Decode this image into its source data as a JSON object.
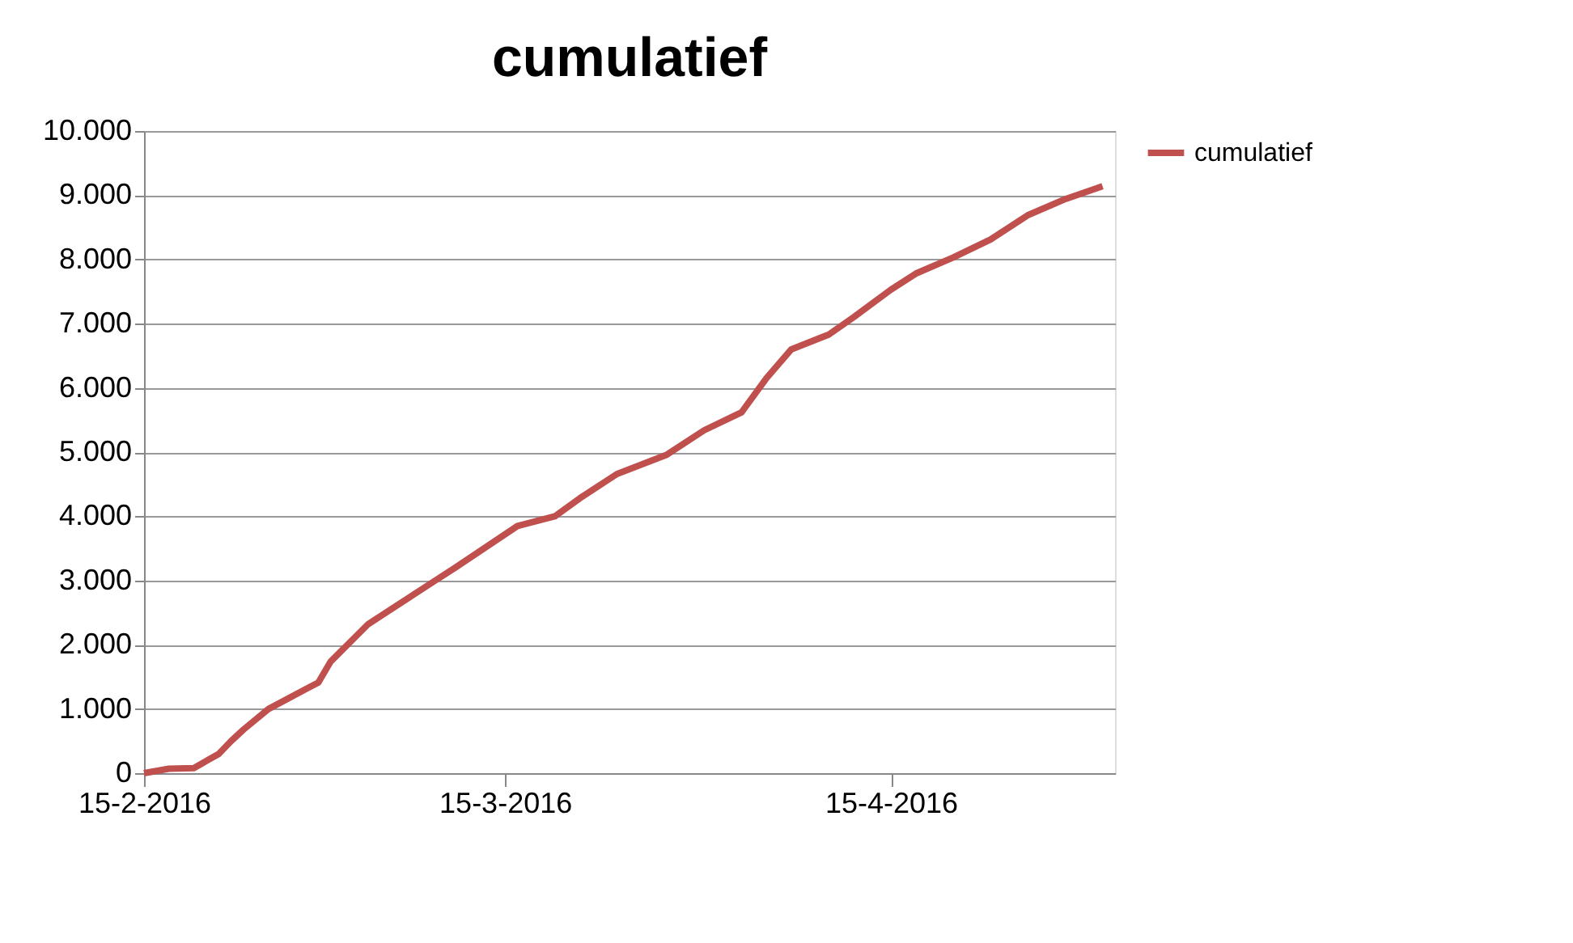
{
  "chart_data": {
    "type": "line",
    "title": "cumulatief",
    "x": [
      "2016-02-15",
      "2016-02-17",
      "2016-02-19",
      "2016-02-21",
      "2016-02-22",
      "2016-02-23",
      "2016-02-25",
      "2016-02-28",
      "2016-02-29",
      "2016-03-01",
      "2016-03-04",
      "2016-03-09",
      "2016-03-11",
      "2016-03-16",
      "2016-03-19",
      "2016-03-21",
      "2016-03-24",
      "2016-03-28",
      "2016-03-31",
      "2016-04-03",
      "2016-04-05",
      "2016-04-07",
      "2016-04-10",
      "2016-04-12",
      "2016-04-15",
      "2016-04-17",
      "2016-04-20",
      "2016-04-23",
      "2016-04-26",
      "2016-04-29",
      "2016-05-02"
    ],
    "series": [
      {
        "name": "cumulatief",
        "color": "#c0504d",
        "values": [
          0,
          70,
          80,
          300,
          500,
          680,
          1000,
          1310,
          1410,
          1740,
          2320,
          2950,
          3200,
          3850,
          4000,
          4280,
          4660,
          4960,
          5340,
          5620,
          6150,
          6600,
          6830,
          7100,
          7530,
          7780,
          8030,
          8310,
          8690,
          8940,
          9140
        ]
      }
    ],
    "xlim": [
      "2016-02-15",
      "2016-05-03"
    ],
    "xticks": [
      {
        "value": "2016-02-15",
        "label": "15-2-2016"
      },
      {
        "value": "2016-03-15",
        "label": "15-3-2016"
      },
      {
        "value": "2016-04-15",
        "label": "15-4-2016"
      }
    ],
    "ylim": [
      0,
      10000
    ],
    "yticks": [
      0,
      {
        "value": 1000,
        "label": "1.000"
      },
      {
        "value": 2000,
        "label": "2.000"
      },
      {
        "value": 3000,
        "label": "3.000"
      },
      {
        "value": 4000,
        "label": "4.000"
      },
      {
        "value": 5000,
        "label": "5.000"
      },
      {
        "value": 6000,
        "label": "6.000"
      },
      {
        "value": 7000,
        "label": "7.000"
      },
      {
        "value": 8000,
        "label": "8.000"
      },
      {
        "value": 9000,
        "label": "9.000"
      },
      {
        "value": 10000,
        "label": "10.000"
      }
    ],
    "grid": "y",
    "legend": "right",
    "line_style": "solid",
    "marker": "none"
  }
}
